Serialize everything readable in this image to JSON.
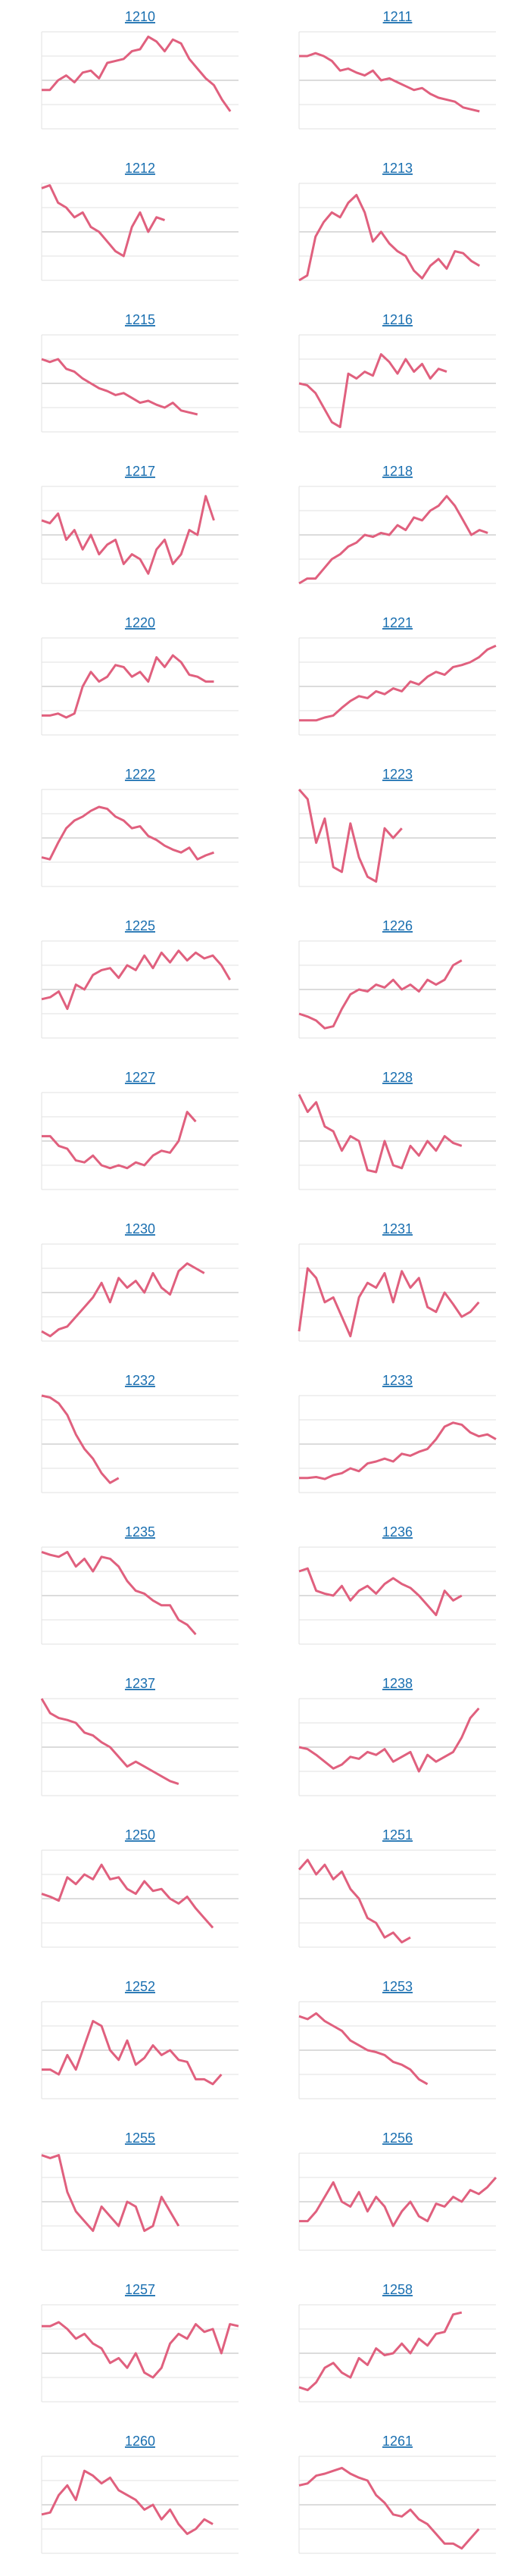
{
  "chart_data": [
    {
      "type": "line",
      "title": "1210",
      "color": "#e0607e",
      "ylim": [
        0,
        100
      ],
      "yticks": [
        0,
        25,
        50,
        75,
        100
      ],
      "grid": true,
      "values": [
        40,
        40,
        50,
        55,
        48,
        58,
        60,
        52,
        68,
        70,
        72,
        80,
        82,
        95,
        90,
        80,
        92,
        88,
        72,
        62,
        52,
        45,
        30,
        18,
        null
      ]
    },
    {
      "type": "line",
      "title": "1211",
      "color": "#e0607e",
      "ylim": [
        0,
        100
      ],
      "yticks": [
        0,
        25,
        50,
        75,
        100
      ],
      "grid": true,
      "values": [
        75,
        75,
        78,
        75,
        70,
        60,
        62,
        58,
        55,
        60,
        50,
        52,
        48,
        44,
        40,
        42,
        36,
        32,
        30,
        28,
        22,
        20,
        18,
        null,
        null
      ]
    },
    {
      "type": "line",
      "title": "1212",
      "color": "#e0607e",
      "ylim": [
        0,
        100
      ],
      "yticks": [
        0,
        25,
        50,
        75,
        100
      ],
      "grid": true,
      "values": [
        95,
        98,
        80,
        75,
        65,
        70,
        55,
        50,
        40,
        30,
        25,
        55,
        70,
        50,
        65,
        62,
        null,
        null,
        null,
        null,
        null,
        null,
        null,
        null,
        null
      ]
    },
    {
      "type": "line",
      "title": "1213",
      "color": "#e0607e",
      "ylim": [
        0,
        100
      ],
      "yticks": [
        0,
        25,
        50,
        75,
        100
      ],
      "grid": true,
      "values": [
        0,
        5,
        45,
        60,
        70,
        65,
        80,
        88,
        70,
        40,
        50,
        38,
        30,
        25,
        10,
        2,
        15,
        22,
        12,
        30,
        28,
        20,
        15,
        null,
        null
      ]
    },
    {
      "type": "line",
      "title": "1215",
      "color": "#e0607e",
      "ylim": [
        0,
        100
      ],
      "yticks": [
        0,
        25,
        50,
        75,
        100
      ],
      "grid": true,
      "values": [
        75,
        72,
        75,
        65,
        62,
        55,
        50,
        45,
        42,
        38,
        40,
        35,
        30,
        32,
        28,
        25,
        30,
        22,
        20,
        18,
        null,
        null,
        null,
        null,
        null
      ]
    },
    {
      "type": "line",
      "title": "1216",
      "color": "#e0607e",
      "ylim": [
        0,
        100
      ],
      "yticks": [
        0,
        25,
        50,
        75,
        100
      ],
      "grid": true,
      "values": [
        50,
        48,
        40,
        25,
        10,
        5,
        60,
        55,
        62,
        58,
        80,
        72,
        60,
        75,
        62,
        70,
        55,
        65,
        62,
        null,
        null,
        null,
        null,
        null,
        null
      ]
    },
    {
      "type": "line",
      "title": "1217",
      "color": "#e0607e",
      "ylim": [
        0,
        100
      ],
      "yticks": [
        0,
        25,
        50,
        75,
        100
      ],
      "grid": true,
      "values": [
        65,
        62,
        72,
        45,
        55,
        35,
        50,
        30,
        40,
        45,
        20,
        30,
        25,
        10,
        35,
        45,
        20,
        30,
        55,
        50,
        90,
        65,
        null,
        null,
        null
      ]
    },
    {
      "type": "line",
      "title": "1218",
      "color": "#e0607e",
      "ylim": [
        0,
        100
      ],
      "yticks": [
        0,
        25,
        50,
        75,
        100
      ],
      "grid": true,
      "values": [
        0,
        5,
        5,
        15,
        25,
        30,
        38,
        42,
        50,
        48,
        52,
        50,
        60,
        55,
        68,
        65,
        75,
        80,
        90,
        80,
        65,
        50,
        55,
        52,
        null
      ]
    },
    {
      "type": "line",
      "title": "1220",
      "color": "#e0607e",
      "ylim": [
        0,
        100
      ],
      "yticks": [
        0,
        25,
        50,
        75,
        100
      ],
      "grid": true,
      "values": [
        20,
        20,
        22,
        18,
        22,
        50,
        65,
        55,
        60,
        72,
        70,
        60,
        65,
        55,
        80,
        70,
        82,
        75,
        62,
        60,
        55,
        55,
        null,
        null,
        null
      ]
    },
    {
      "type": "line",
      "title": "1221",
      "color": "#e0607e",
      "ylim": [
        0,
        100
      ],
      "yticks": [
        0,
        25,
        50,
        75,
        100
      ],
      "grid": true,
      "values": [
        15,
        15,
        15,
        18,
        20,
        28,
        35,
        40,
        38,
        45,
        42,
        48,
        45,
        55,
        52,
        60,
        65,
        62,
        70,
        72,
        75,
        80,
        88,
        92
      ]
    },
    {
      "type": "line",
      "title": "1222",
      "color": "#e0607e",
      "ylim": [
        0,
        100
      ],
      "yticks": [
        0,
        25,
        50,
        75,
        100
      ],
      "grid": true,
      "values": [
        30,
        28,
        45,
        60,
        68,
        72,
        78,
        82,
        80,
        72,
        68,
        60,
        62,
        52,
        48,
        42,
        38,
        35,
        40,
        28,
        32,
        35,
        null,
        null,
        null
      ]
    },
    {
      "type": "line",
      "title": "1223",
      "color": "#e0607e",
      "ylim": [
        0,
        100
      ],
      "yticks": [
        0,
        25,
        50,
        75,
        100
      ],
      "grid": true,
      "values": [
        100,
        90,
        45,
        70,
        20,
        15,
        65,
        30,
        10,
        5,
        60,
        50,
        60,
        null,
        null,
        null,
        null,
        null,
        null,
        null,
        null,
        null,
        null,
        null
      ]
    },
    {
      "type": "line",
      "title": "1225",
      "color": "#e0607e",
      "ylim": [
        0,
        100
      ],
      "yticks": [
        0,
        25,
        50,
        75,
        100
      ],
      "grid": true,
      "values": [
        40,
        42,
        48,
        30,
        55,
        50,
        65,
        70,
        72,
        62,
        75,
        70,
        85,
        72,
        88,
        78,
        90,
        80,
        88,
        82,
        85,
        75,
        60,
        null
      ]
    },
    {
      "type": "line",
      "title": "1226",
      "color": "#e0607e",
      "ylim": [
        0,
        100
      ],
      "yticks": [
        0,
        25,
        50,
        75,
        100
      ],
      "grid": true,
      "values": [
        25,
        22,
        18,
        10,
        12,
        30,
        45,
        50,
        48,
        55,
        52,
        60,
        50,
        55,
        48,
        60,
        55,
        60,
        75,
        80,
        null,
        null,
        null,
        null
      ]
    },
    {
      "type": "line",
      "title": "1227",
      "color": "#e0607e",
      "ylim": [
        0,
        100
      ],
      "yticks": [
        0,
        25,
        50,
        75,
        100
      ],
      "grid": true,
      "values": [
        55,
        55,
        45,
        42,
        30,
        28,
        35,
        25,
        22,
        25,
        22,
        28,
        25,
        35,
        40,
        38,
        50,
        80,
        70,
        null,
        null,
        null,
        null,
        null
      ]
    },
    {
      "type": "line",
      "title": "1228",
      "color": "#e0607e",
      "ylim": [
        0,
        100
      ],
      "yticks": [
        0,
        25,
        50,
        75,
        100
      ],
      "grid": true,
      "values": [
        98,
        80,
        90,
        65,
        60,
        40,
        55,
        50,
        20,
        18,
        50,
        25,
        22,
        45,
        35,
        50,
        40,
        55,
        48,
        45,
        null,
        null,
        null,
        null
      ]
    },
    {
      "type": "line",
      "title": "1230",
      "color": "#e0607e",
      "ylim": [
        0,
        100
      ],
      "yticks": [
        0,
        25,
        50,
        75,
        100
      ],
      "grid": true,
      "values": [
        10,
        5,
        12,
        15,
        25,
        35,
        45,
        60,
        40,
        65,
        55,
        62,
        50,
        70,
        55,
        48,
        72,
        80,
        75,
        70,
        null,
        null,
        null,
        null
      ]
    },
    {
      "type": "line",
      "title": "1231",
      "color": "#e0607e",
      "ylim": [
        0,
        100
      ],
      "yticks": [
        0,
        25,
        50,
        75,
        100
      ],
      "grid": true,
      "values": [
        10,
        75,
        65,
        40,
        45,
        25,
        5,
        45,
        60,
        55,
        70,
        40,
        72,
        55,
        65,
        35,
        30,
        50,
        38,
        25,
        30,
        40,
        null,
        null
      ]
    },
    {
      "type": "line",
      "title": "1232",
      "color": "#e0607e",
      "ylim": [
        0,
        100
      ],
      "yticks": [
        0,
        25,
        50,
        75,
        100
      ],
      "grid": true,
      "values": [
        100,
        98,
        92,
        80,
        60,
        45,
        35,
        20,
        10,
        15,
        null,
        null,
        null,
        null,
        null,
        null,
        null,
        null,
        null,
        null,
        null,
        null,
        null,
        null
      ]
    },
    {
      "type": "line",
      "title": "1233",
      "color": "#e0607e",
      "ylim": [
        0,
        100
      ],
      "yticks": [
        0,
        25,
        50,
        75,
        100
      ],
      "grid": true,
      "values": [
        15,
        15,
        16,
        14,
        18,
        20,
        25,
        22,
        30,
        32,
        35,
        32,
        40,
        38,
        42,
        45,
        55,
        68,
        72,
        70,
        62,
        58,
        60,
        55
      ]
    },
    {
      "type": "line",
      "title": "1235",
      "color": "#e0607e",
      "ylim": [
        0,
        100
      ],
      "yticks": [
        0,
        25,
        50,
        75,
        100
      ],
      "grid": true,
      "values": [
        95,
        92,
        90,
        95,
        80,
        88,
        75,
        90,
        88,
        80,
        65,
        55,
        52,
        45,
        40,
        40,
        25,
        20,
        10,
        null,
        null,
        null,
        null,
        null
      ]
    },
    {
      "type": "line",
      "title": "1236",
      "color": "#e0607e",
      "ylim": [
        0,
        100
      ],
      "yticks": [
        0,
        25,
        50,
        75,
        100
      ],
      "grid": true,
      "values": [
        75,
        78,
        55,
        52,
        50,
        60,
        45,
        55,
        60,
        52,
        62,
        68,
        62,
        58,
        50,
        40,
        30,
        55,
        45,
        50,
        null,
        null,
        null,
        null
      ]
    },
    {
      "type": "line",
      "title": "1237",
      "color": "#e0607e",
      "ylim": [
        0,
        100
      ],
      "yticks": [
        0,
        25,
        50,
        75,
        100
      ],
      "grid": true,
      "values": [
        100,
        85,
        80,
        78,
        75,
        65,
        62,
        55,
        50,
        40,
        30,
        35,
        30,
        25,
        20,
        15,
        12,
        null,
        null,
        null,
        null,
        null,
        null,
        null
      ]
    },
    {
      "type": "line",
      "title": "1238",
      "color": "#e0607e",
      "ylim": [
        0,
        100
      ],
      "yticks": [
        0,
        25,
        50,
        75,
        100
      ],
      "grid": true,
      "values": [
        50,
        48,
        42,
        35,
        28,
        32,
        40,
        38,
        45,
        42,
        48,
        35,
        40,
        45,
        25,
        42,
        35,
        40,
        45,
        60,
        80,
        90,
        null,
        null
      ]
    },
    {
      "type": "line",
      "title": "1250",
      "color": "#e0607e",
      "ylim": [
        0,
        100
      ],
      "yticks": [
        0,
        25,
        50,
        75,
        100
      ],
      "grid": true,
      "values": [
        55,
        52,
        48,
        72,
        65,
        75,
        70,
        85,
        70,
        72,
        60,
        55,
        68,
        58,
        60,
        50,
        45,
        52,
        40,
        30,
        20,
        null,
        null,
        null
      ]
    },
    {
      "type": "line",
      "title": "1251",
      "color": "#e0607e",
      "ylim": [
        0,
        100
      ],
      "yticks": [
        0,
        25,
        50,
        75,
        100
      ],
      "grid": true,
      "values": [
        80,
        90,
        75,
        85,
        70,
        78,
        60,
        50,
        30,
        25,
        10,
        15,
        5,
        10,
        null,
        null,
        null,
        null,
        null,
        null,
        null,
        null,
        null,
        null
      ]
    },
    {
      "type": "line",
      "title": "1252",
      "color": "#e0607e",
      "ylim": [
        0,
        100
      ],
      "yticks": [
        0,
        25,
        50,
        75,
        100
      ],
      "grid": true,
      "values": [
        30,
        30,
        25,
        45,
        30,
        55,
        80,
        75,
        50,
        40,
        60,
        35,
        42,
        55,
        45,
        50,
        40,
        38,
        20,
        20,
        15,
        25,
        null,
        null
      ]
    },
    {
      "type": "line",
      "title": "1253",
      "color": "#e0607e",
      "ylim": [
        0,
        100
      ],
      "yticks": [
        0,
        25,
        50,
        75,
        100
      ],
      "grid": true,
      "values": [
        85,
        82,
        88,
        80,
        75,
        70,
        60,
        55,
        50,
        48,
        45,
        38,
        35,
        30,
        20,
        15,
        null,
        null,
        null,
        null,
        null,
        null,
        null,
        null
      ]
    },
    {
      "type": "line",
      "title": "1255",
      "color": "#e0607e",
      "ylim": [
        0,
        100
      ],
      "yticks": [
        0,
        25,
        50,
        75,
        100
      ],
      "grid": true,
      "values": [
        98,
        95,
        98,
        60,
        40,
        30,
        20,
        45,
        35,
        25,
        50,
        45,
        20,
        25,
        55,
        40,
        25,
        null,
        null,
        null,
        null,
        null,
        null,
        null
      ]
    },
    {
      "type": "line",
      "title": "1256",
      "color": "#e0607e",
      "ylim": [
        0,
        100
      ],
      "yticks": [
        0,
        25,
        50,
        75,
        100
      ],
      "grid": true,
      "values": [
        30,
        30,
        40,
        55,
        70,
        50,
        45,
        60,
        40,
        55,
        45,
        25,
        40,
        50,
        35,
        30,
        48,
        45,
        55,
        50,
        62,
        58,
        65,
        75
      ]
    },
    {
      "type": "line",
      "title": "1257",
      "color": "#e0607e",
      "ylim": [
        0,
        100
      ],
      "yticks": [
        0,
        25,
        50,
        75,
        100
      ],
      "grid": true,
      "values": [
        78,
        78,
        82,
        75,
        65,
        70,
        60,
        55,
        40,
        45,
        35,
        50,
        30,
        25,
        35,
        60,
        70,
        65,
        80,
        72,
        75,
        50,
        80,
        78
      ]
    },
    {
      "type": "line",
      "title": "1258",
      "color": "#e0607e",
      "ylim": [
        0,
        100
      ],
      "yticks": [
        0,
        25,
        50,
        75,
        100
      ],
      "grid": true,
      "values": [
        15,
        12,
        20,
        35,
        40,
        30,
        25,
        45,
        38,
        55,
        48,
        50,
        60,
        50,
        65,
        58,
        70,
        72,
        90,
        92,
        null,
        null,
        null,
        null
      ]
    },
    {
      "type": "line",
      "title": "1260",
      "color": "#e0607e",
      "ylim": [
        0,
        100
      ],
      "yticks": [
        0,
        25,
        50,
        75,
        100
      ],
      "grid": true,
      "values": [
        40,
        42,
        60,
        70,
        55,
        85,
        80,
        72,
        78,
        65,
        60,
        55,
        45,
        50,
        35,
        45,
        30,
        20,
        25,
        35,
        30,
        null,
        null,
        null
      ]
    },
    {
      "type": "line",
      "title": "1261",
      "color": "#e0607e",
      "ylim": [
        0,
        100
      ],
      "yticks": [
        0,
        25,
        50,
        75,
        100
      ],
      "grid": true,
      "values": [
        70,
        72,
        80,
        82,
        85,
        88,
        82,
        78,
        75,
        60,
        52,
        40,
        38,
        45,
        35,
        30,
        20,
        10,
        10,
        5,
        15,
        25,
        null,
        null
      ]
    }
  ]
}
